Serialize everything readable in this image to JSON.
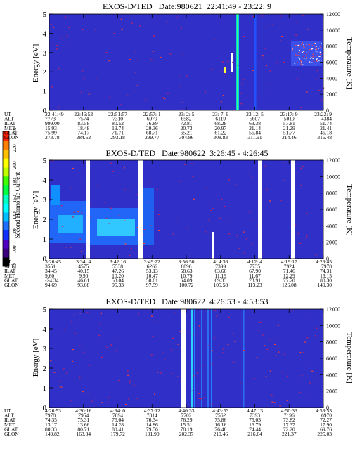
{
  "page": {
    "background": "#ffffff",
    "spectrogram_bg": "#3030c8"
  },
  "colorbar": {
    "label": "Second Harmonic Current",
    "ticks": [
      "80",
      "100",
      "120",
      "140",
      "160",
      "180",
      "200",
      "220",
      "240"
    ],
    "colors": [
      "#000000",
      "#3a0080",
      "#5000c0",
      "#1030ff",
      "#2070ff",
      "#00c0ff",
      "#00ffff",
      "#00ffc0",
      "#00ff40",
      "#40ff00",
      "#c0ff00",
      "#ffff00",
      "#ffc000",
      "#ff8000",
      "#ff2000"
    ]
  },
  "chart_data": [
    {
      "type": "heatmap",
      "title": "EXOS-D/TED   Date:980621  22:41:49 - 23:22: 9",
      "ylabel": "Energy [eV]",
      "y2label": "Temperature [K]",
      "ylim": [
        0,
        5
      ],
      "y2lim": [
        0,
        12000
      ],
      "yticks": [
        "0",
        "1",
        "2",
        "3",
        "4",
        "5"
      ],
      "y2ticks": [
        "0",
        "2000",
        "4000",
        "6000",
        "8000",
        "10000",
        "12000"
      ],
      "grid": false,
      "rows": [
        {
          "label": "UT",
          "values": [
            "22:41:49",
            "22:46:53",
            "22:51:57",
            "22:57: 1",
            "23: 2: 5",
            "23: 7: 9",
            "23:12: 5",
            "23:17: 9",
            "23:22: 9"
          ]
        },
        {
          "label": "ALT",
          "values": [
            "7773",
            "7574",
            "7310",
            "6979",
            "6582",
            "6119",
            "5607",
            "5019",
            "4384"
          ]
        },
        {
          "label": "ILAT",
          "values": [
            "999.00",
            "83.58",
            "80.52",
            "76.89",
            "72.81",
            "68.28",
            "63.38",
            "57.81",
            "51.74"
          ]
        },
        {
          "label": "MLT",
          "values": [
            "15.93",
            "18.48",
            "19.74",
            "20.36",
            "20.73",
            "20.97",
            "21.14",
            "21.29",
            "21.41"
          ]
        },
        {
          "label": "GLAT",
          "values": [
            "75.99",
            "74.17",
            "71.71",
            "68.71",
            "65.21",
            "61.22",
            "56.84",
            "51.77",
            "46.18"
          ]
        },
        {
          "label": "GLON",
          "values": [
            "273.78",
            "284.62",
            "293.18",
            "299.77",
            "304.86",
            "308.83",
            "311.91",
            "314.46",
            "316.48"
          ]
        }
      ],
      "gaps": [],
      "features": "sparse red speckle on uniform blue background; narrow cyan/green stripe near 23:08 and bright speckle patch near 23:17-23:22 around 6000-9000 K"
    },
    {
      "type": "heatmap",
      "title": "EXOS-D/TED   Date:980622  3:26:45 - 4:26:45",
      "ylabel": "Energy [eV]",
      "y2label": "Temperature [K]",
      "ylim": [
        0,
        5
      ],
      "y2lim": [
        0,
        12000
      ],
      "yticks": [
        "0",
        "1",
        "2",
        "3",
        "4",
        "5"
      ],
      "y2ticks": [
        "0",
        "2000",
        "4000",
        "6000",
        "8000",
        "10000",
        "12000"
      ],
      "grid": false,
      "rows": [
        {
          "label": "UT",
          "values": [
            "3:26:45",
            "3:34: 4",
            "3:42:16",
            "3:49:22",
            "3:56:50",
            "4: 4:36",
            "4:12: 4",
            "4:19:17",
            "4:26:45"
          ]
        },
        {
          "label": "ALT",
          "values": [
            "3551",
            "4575",
            "5538",
            "6266",
            "6896",
            "7399",
            "7735",
            "7924",
            "7978"
          ]
        },
        {
          "label": "ILAT",
          "values": [
            "34.45",
            "40.15",
            "47.26",
            "53.13",
            "58.63",
            "63.66",
            "67.90",
            "71.46",
            "74.31"
          ]
        },
        {
          "label": "MLT",
          "values": [
            "9.60",
            "9.90",
            "10.20",
            "10.47",
            "10.79",
            "11.19",
            "11.67",
            "12.29",
            "13.15"
          ]
        },
        {
          "label": "GLAT",
          "values": [
            "-24.34",
            "46.61",
            "53.04",
            "58.61",
            "64.09",
            "69.33",
            "73.91",
            "77.70",
            "80.30"
          ]
        },
        {
          "label": "GLON",
          "values": [
            "94.69",
            "93.08",
            "95.33",
            "97.59",
            "100.72",
            "105.58",
            "113.23",
            "126.08",
            "149.30"
          ]
        }
      ],
      "gaps": [
        "3:37",
        "3:49",
        "4:17",
        "4:24"
      ],
      "features": "enhanced cyan band at 1-2.5 eV from 3:26 to 3:47; sparse red speckle afterwards"
    },
    {
      "type": "heatmap",
      "title": "EXOS-D/TED   Date:980622  4:26:53 - 4:53:53",
      "ylabel": "Energy [eV]",
      "y2label": "Temperature [K]",
      "ylim": [
        0,
        5
      ],
      "y2lim": [
        0,
        12000
      ],
      "yticks": [
        "0",
        "1",
        "2",
        "3",
        "4",
        "5"
      ],
      "y2ticks": [
        "0",
        "2000",
        "4000",
        "6000",
        "8000",
        "10000",
        "12000"
      ],
      "grid": false,
      "rows": [
        {
          "label": "UT",
          "values": [
            "4:26:53",
            "4:30:16",
            "4:34: 0",
            "4:37:12",
            "4:40:33",
            "4:43:53",
            "4:47:13",
            "4:50:33",
            "4:53:53"
          ]
        },
        {
          "label": "ALT",
          "values": [
            "7978",
            "7954",
            "7894",
            "7814",
            "7702",
            "7562",
            "7393",
            "7196",
            "6970"
          ]
        },
        {
          "label": "ILAT",
          "values": [
            "74.35",
            "75.31",
            "76.04",
            "76.34",
            "76.29",
            "75.86",
            "75.03",
            "73.82",
            "72.27"
          ]
        },
        {
          "label": "MLT",
          "values": [
            "13.17",
            "13.66",
            "14.28",
            "14.86",
            "15.51",
            "16.16",
            "16.79",
            "17.37",
            "17.90"
          ]
        },
        {
          "label": "GLAT",
          "values": [
            "80.33",
            "80.71",
            "80.41",
            "79.56",
            "78.19",
            "76.46",
            "74.44",
            "72.20",
            "69.76"
          ]
        },
        {
          "label": "GLON",
          "values": [
            "149.82",
            "163.84",
            "179.72",
            "191.90",
            "202.37",
            "210.46",
            "216.64",
            "221.37",
            "225.03"
          ]
        }
      ],
      "gaps": [
        "4:40:20"
      ],
      "features": "uniform blue with sparse red speckle; faint vertical stripes near 4:41-4:46"
    }
  ]
}
